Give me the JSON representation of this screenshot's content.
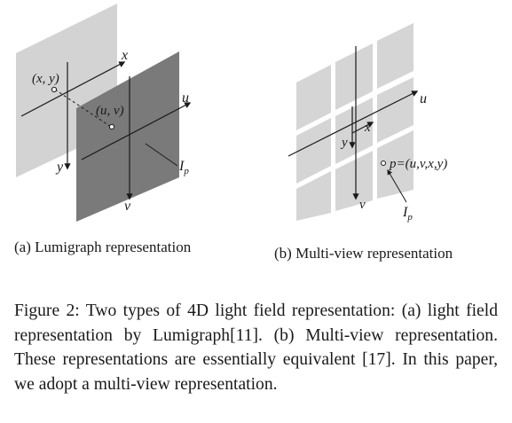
{
  "panel_a": {
    "labels": {
      "x": "x",
      "u": "u",
      "y": "y",
      "v": "v",
      "xy": "(x, y)",
      "uv": "(u, v)",
      "Ip": "I",
      "Ip_sub": "p"
    },
    "colors": {
      "back_plane": "#d3d3d3",
      "front_plane": "#7a7a7a",
      "line": "#1a1a1a"
    }
  },
  "panel_b": {
    "labels": {
      "u": "u",
      "x": "x",
      "y": "y",
      "v": "v",
      "p": "p=(u,v,x,y)",
      "Ip": "I",
      "Ip_sub": "p"
    },
    "colors": {
      "tile": "#d5d5d5",
      "line": "#1a1a1a"
    }
  },
  "captions": {
    "a": "(a) Lumigraph representation",
    "b": "(b) Multi-view representation",
    "main": "Figure 2: Two types of 4D light field representation: (a) light field representation by Lumigraph[11]. (b) Multi-view representation. These representations are essentially equivalent [17]. In this paper, we adopt a multi-view representation."
  }
}
